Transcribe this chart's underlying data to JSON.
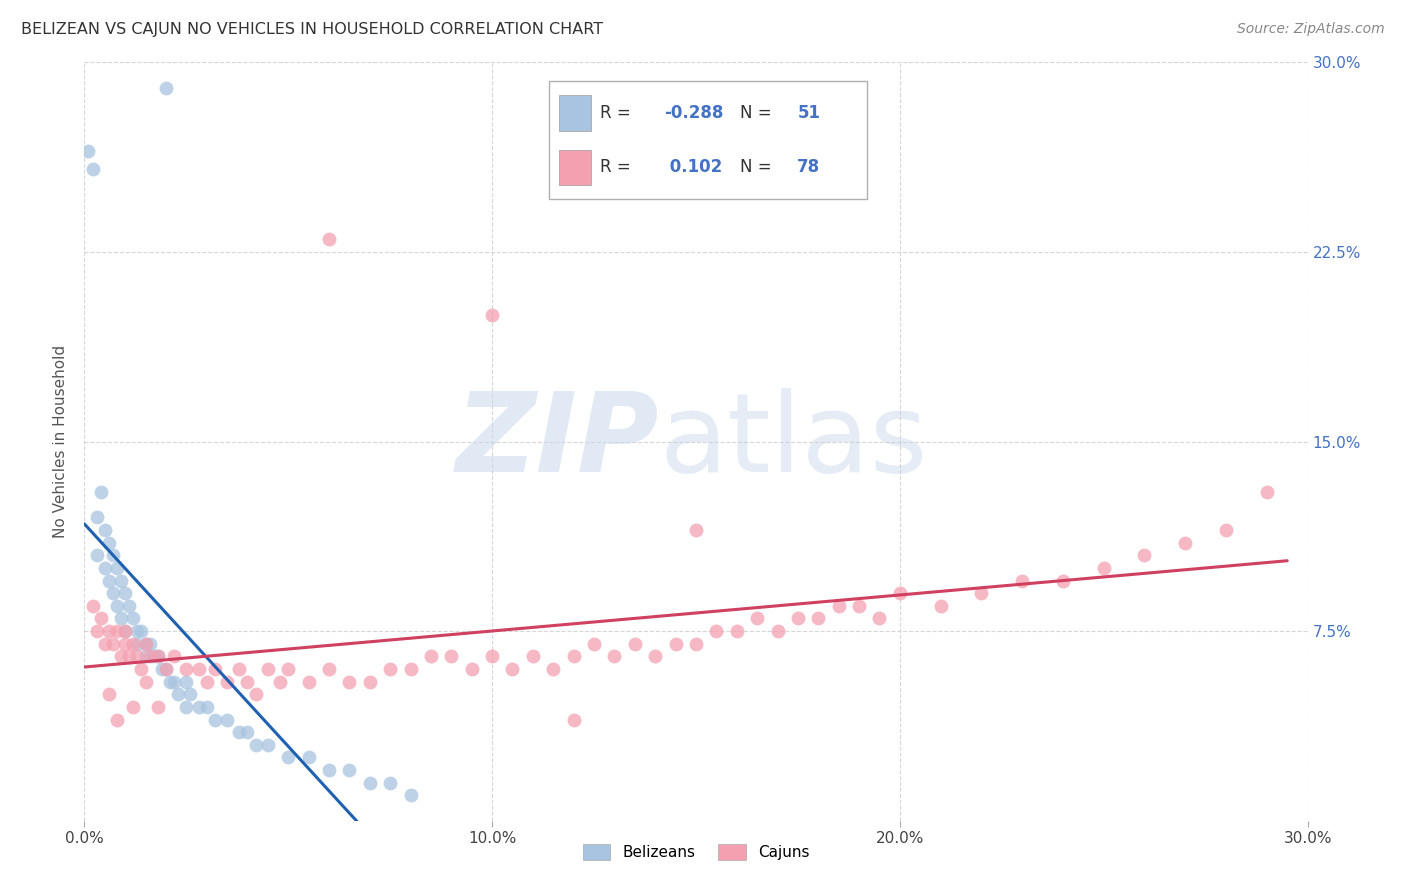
{
  "title": "BELIZEAN VS CAJUN NO VEHICLES IN HOUSEHOLD CORRELATION CHART",
  "source": "Source: ZipAtlas.com",
  "ylabel": "No Vehicles in Household",
  "xlim": [
    0.0,
    0.3
  ],
  "ylim": [
    0.0,
    0.3
  ],
  "ytick_labels": [
    "7.5%",
    "15.0%",
    "22.5%",
    "30.0%"
  ],
  "ytick_values": [
    0.075,
    0.15,
    0.225,
    0.3
  ],
  "xtick_labels": [
    "0.0%",
    "10.0%",
    "20.0%",
    "30.0%"
  ],
  "xtick_values": [
    0.0,
    0.1,
    0.2,
    0.3
  ],
  "belizean_R": -0.288,
  "belizean_N": 51,
  "cajun_R": 0.102,
  "cajun_N": 78,
  "belizean_color": "#a8c4e0",
  "cajun_color": "#f4a0b0",
  "belizean_line_color": "#2060b0",
  "cajun_line_color": "#d04060",
  "bel_x": [
    0.001,
    0.002,
    0.003,
    0.003,
    0.004,
    0.005,
    0.005,
    0.006,
    0.006,
    0.007,
    0.007,
    0.008,
    0.008,
    0.009,
    0.009,
    0.01,
    0.01,
    0.011,
    0.012,
    0.013,
    0.013,
    0.014,
    0.015,
    0.015,
    0.016,
    0.017,
    0.018,
    0.019,
    0.02,
    0.021,
    0.022,
    0.023,
    0.025,
    0.026,
    0.028,
    0.03,
    0.032,
    0.035,
    0.038,
    0.04,
    0.042,
    0.045,
    0.05,
    0.055,
    0.06,
    0.065,
    0.07,
    0.075,
    0.08,
    0.02,
    0.025
  ],
  "bel_y": [
    0.265,
    0.258,
    0.12,
    0.105,
    0.13,
    0.115,
    0.1,
    0.11,
    0.095,
    0.105,
    0.09,
    0.1,
    0.085,
    0.095,
    0.08,
    0.09,
    0.075,
    0.085,
    0.08,
    0.075,
    0.07,
    0.075,
    0.07,
    0.065,
    0.07,
    0.065,
    0.065,
    0.06,
    0.06,
    0.055,
    0.055,
    0.05,
    0.055,
    0.05,
    0.045,
    0.045,
    0.04,
    0.04,
    0.035,
    0.035,
    0.03,
    0.03,
    0.025,
    0.025,
    0.02,
    0.02,
    0.015,
    0.015,
    0.01,
    0.29,
    0.045
  ],
  "caj_x": [
    0.002,
    0.003,
    0.004,
    0.005,
    0.006,
    0.007,
    0.008,
    0.009,
    0.01,
    0.011,
    0.012,
    0.013,
    0.014,
    0.015,
    0.016,
    0.018,
    0.02,
    0.022,
    0.025,
    0.028,
    0.03,
    0.032,
    0.035,
    0.038,
    0.04,
    0.042,
    0.045,
    0.048,
    0.05,
    0.055,
    0.06,
    0.065,
    0.07,
    0.075,
    0.08,
    0.085,
    0.09,
    0.095,
    0.1,
    0.105,
    0.11,
    0.115,
    0.12,
    0.125,
    0.13,
    0.135,
    0.14,
    0.145,
    0.15,
    0.155,
    0.16,
    0.165,
    0.17,
    0.175,
    0.18,
    0.185,
    0.19,
    0.195,
    0.2,
    0.21,
    0.22,
    0.23,
    0.24,
    0.25,
    0.26,
    0.27,
    0.28,
    0.06,
    0.1,
    0.15,
    0.006,
    0.008,
    0.01,
    0.012,
    0.015,
    0.018,
    0.12,
    0.29
  ],
  "caj_y": [
    0.085,
    0.075,
    0.08,
    0.07,
    0.075,
    0.07,
    0.075,
    0.065,
    0.07,
    0.065,
    0.07,
    0.065,
    0.06,
    0.07,
    0.065,
    0.065,
    0.06,
    0.065,
    0.06,
    0.06,
    0.055,
    0.06,
    0.055,
    0.06,
    0.055,
    0.05,
    0.06,
    0.055,
    0.06,
    0.055,
    0.06,
    0.055,
    0.055,
    0.06,
    0.06,
    0.065,
    0.065,
    0.06,
    0.065,
    0.06,
    0.065,
    0.06,
    0.065,
    0.07,
    0.065,
    0.07,
    0.065,
    0.07,
    0.07,
    0.075,
    0.075,
    0.08,
    0.075,
    0.08,
    0.08,
    0.085,
    0.085,
    0.08,
    0.09,
    0.085,
    0.09,
    0.095,
    0.095,
    0.1,
    0.105,
    0.11,
    0.115,
    0.23,
    0.2,
    0.115,
    0.05,
    0.04,
    0.075,
    0.045,
    0.055,
    0.045,
    0.04,
    0.13
  ]
}
